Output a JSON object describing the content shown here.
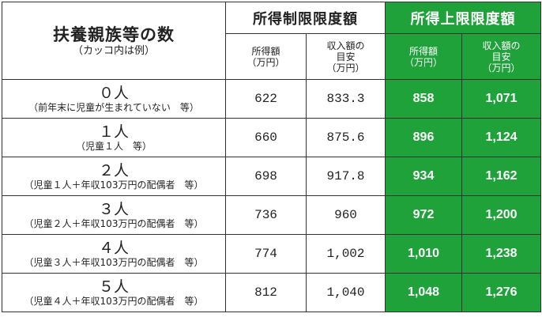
{
  "header": {
    "category_title": "扶養親族等の数",
    "category_note": "（カッコ内は例）",
    "group1_title": "所得制限限度額",
    "group2_title": "所得上限限度額",
    "col_income": [
      "所得額",
      "（万円）"
    ],
    "col_revenue": [
      "収入額の",
      "目安",
      "（万円）"
    ]
  },
  "rows": [
    {
      "label": "０人",
      "note": "（前年末に児童が生まれていない　等）",
      "income_limit": "622",
      "revenue_limit": "833.3",
      "income_upper": "858",
      "revenue_upper": "1,071"
    },
    {
      "label": "１人",
      "note": "（児童１人　等）",
      "income_limit": "660",
      "revenue_limit": "875.6",
      "income_upper": "896",
      "revenue_upper": "1,124"
    },
    {
      "label": "２人",
      "note": "（児童１人＋年収103万円の配偶者　等）",
      "income_limit": "698",
      "revenue_limit": "917.8",
      "income_upper": "934",
      "revenue_upper": "1,162"
    },
    {
      "label": "３人",
      "note": "（児童２人＋年収103万円の配偶者　等）",
      "income_limit": "736",
      "revenue_limit": "960",
      "income_upper": "972",
      "revenue_upper": "1,200"
    },
    {
      "label": "４人",
      "note": "（児童３人＋年収103万円の配偶者　等）",
      "income_limit": "774",
      "revenue_limit": "1,002",
      "income_upper": "1,010",
      "revenue_upper": "1,238"
    },
    {
      "label": "５人",
      "note": "（児童４人＋年収103万円の配偶者　等）",
      "income_limit": "812",
      "revenue_limit": "1,040",
      "income_upper": "1,048",
      "revenue_upper": "1,276"
    }
  ],
  "colors": {
    "accent_green": "#1fa23a",
    "border": "#333333"
  }
}
